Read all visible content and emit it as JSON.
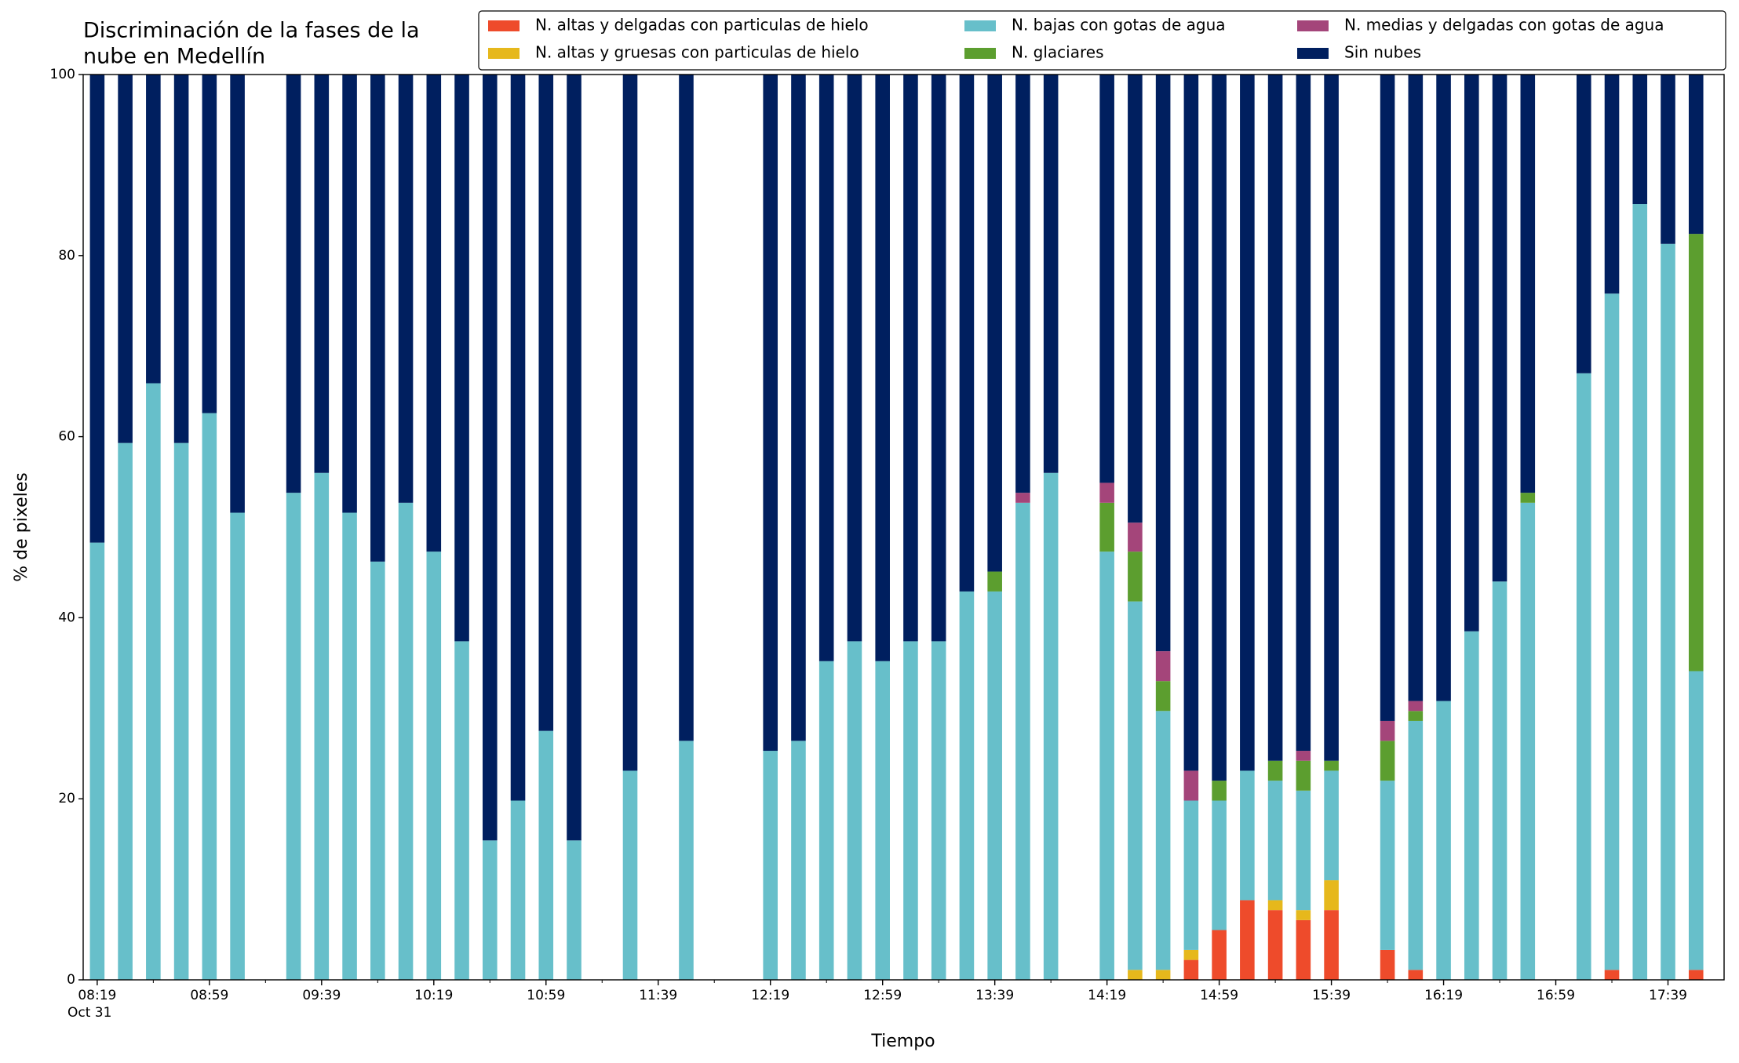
{
  "chart_data": {
    "type": "stacked_bar",
    "title": [
      "Discriminación de la fases de la",
      "nube en Medellín"
    ],
    "x_label": "Tiempo",
    "y_label": "% de pixeles",
    "x_date_label": "Oct 31",
    "categories": [
      "08:19",
      null,
      null,
      null,
      "08:59",
      null,
      null,
      null,
      "09:39",
      null,
      null,
      null,
      "10:19",
      null,
      null,
      null,
      "10:59",
      null,
      null,
      null,
      "11:39",
      null,
      null,
      null,
      "12:19",
      null,
      null,
      null,
      "12:59",
      null,
      null,
      null,
      "13:39",
      null,
      null,
      null,
      "14:19",
      null,
      null,
      null,
      "14:59",
      null,
      null,
      null,
      "15:39",
      null,
      null,
      null,
      "16:19",
      null,
      null,
      null,
      "16:59",
      null,
      null,
      null,
      "17:39",
      null
    ],
    "ylim": [
      0,
      100
    ],
    "yticks": [
      0,
      20,
      40,
      60,
      80,
      100
    ],
    "grid": false,
    "legend": "top-right",
    "series": [
      {
        "name": "N. altas y delgadas con particulas de hielo",
        "color": "#ee4b2b",
        "values": [
          0,
          0,
          0,
          0,
          0,
          0,
          null,
          0,
          0,
          0,
          0,
          0,
          0,
          0,
          0,
          0,
          0,
          0,
          null,
          0,
          null,
          0,
          null,
          null,
          0,
          0,
          0,
          0,
          0,
          0,
          0,
          0,
          0,
          0,
          0,
          null,
          0,
          0,
          0,
          2.2,
          5.5,
          8.8,
          7.7,
          6.6,
          7.7,
          null,
          3.3,
          1.1,
          0,
          0,
          0,
          0,
          null,
          0,
          1.1,
          0,
          0,
          1.1
        ]
      },
      {
        "name": "N. altas y gruesas con particulas de hielo",
        "color": "#e6b81c",
        "values": [
          0,
          0,
          0,
          0,
          0,
          0,
          null,
          0,
          0,
          0,
          0,
          0,
          0,
          0,
          0,
          0,
          0,
          0,
          null,
          0,
          null,
          0,
          null,
          null,
          0,
          0,
          0,
          0,
          0,
          0,
          0,
          0,
          0,
          0,
          0,
          null,
          0,
          1.1,
          1.1,
          1.1,
          0,
          0,
          1.1,
          1.1,
          3.3,
          null,
          0,
          0,
          0,
          0,
          0,
          0,
          null,
          0,
          0,
          0,
          0,
          0
        ]
      },
      {
        "name": "N. bajas con gotas de agua",
        "color": "#67bfca",
        "values": [
          48.3,
          59.3,
          65.9,
          59.3,
          62.6,
          51.6,
          null,
          53.8,
          56.0,
          51.6,
          46.2,
          52.7,
          47.3,
          37.4,
          15.4,
          19.8,
          27.5,
          15.4,
          null,
          23.1,
          null,
          26.4,
          null,
          null,
          25.3,
          26.4,
          35.2,
          37.4,
          35.2,
          37.4,
          37.4,
          42.9,
          42.9,
          52.7,
          56.0,
          null,
          47.3,
          40.7,
          28.6,
          16.5,
          14.3,
          14.3,
          13.2,
          13.2,
          12.1,
          null,
          18.7,
          27.5,
          30.8,
          38.5,
          44.0,
          52.7,
          null,
          67.0,
          74.7,
          85.7,
          81.3,
          33.0
        ]
      },
      {
        "name": "N. glaciares",
        "color": "#5c9e2f",
        "values": [
          0,
          0,
          0,
          0,
          0,
          0,
          null,
          0,
          0,
          0,
          0,
          0,
          0,
          0,
          0,
          0,
          0,
          0,
          null,
          0,
          null,
          0,
          null,
          null,
          0,
          0,
          0,
          0,
          0,
          0,
          0,
          0,
          2.2,
          0,
          0,
          null,
          5.4,
          5.5,
          3.3,
          0,
          2.2,
          0,
          2.2,
          3.3,
          1.1,
          null,
          4.4,
          1.1,
          0,
          0,
          0,
          1.1,
          null,
          0,
          0,
          0,
          0,
          48.3
        ]
      },
      {
        "name": "N. medias y delgadas con gotas de agua",
        "color": "#a4457a",
        "values": [
          0,
          0,
          0,
          0,
          0,
          0,
          null,
          0,
          0,
          0,
          0,
          0,
          0,
          0,
          0,
          0,
          0,
          0,
          null,
          0,
          null,
          0,
          null,
          null,
          0,
          0,
          0,
          0,
          0,
          0,
          0,
          0,
          0,
          1.1,
          0,
          null,
          2.2,
          3.2,
          3.3,
          3.3,
          0,
          0,
          0,
          1.1,
          0,
          null,
          2.2,
          1.1,
          0,
          0,
          0,
          0,
          null,
          0,
          0,
          0,
          0,
          0
        ]
      },
      {
        "name": "Sin nubes",
        "color": "#001f5f",
        "values": [
          51.7,
          40.7,
          34.1,
          40.7,
          37.4,
          48.4,
          null,
          46.2,
          44.0,
          48.4,
          53.8,
          47.3,
          52.7,
          62.6,
          84.6,
          80.2,
          72.5,
          84.6,
          null,
          76.9,
          null,
          73.6,
          null,
          null,
          74.7,
          73.6,
          64.8,
          62.6,
          64.8,
          62.6,
          62.6,
          57.1,
          54.9,
          46.2,
          44.0,
          null,
          45.1,
          49.5,
          63.7,
          76.9,
          78.0,
          76.9,
          75.8,
          74.7,
          75.8,
          null,
          71.4,
          69.2,
          69.2,
          61.5,
          56.0,
          46.2,
          null,
          33.0,
          24.2,
          14.3,
          18.7,
          17.6
        ]
      }
    ]
  }
}
